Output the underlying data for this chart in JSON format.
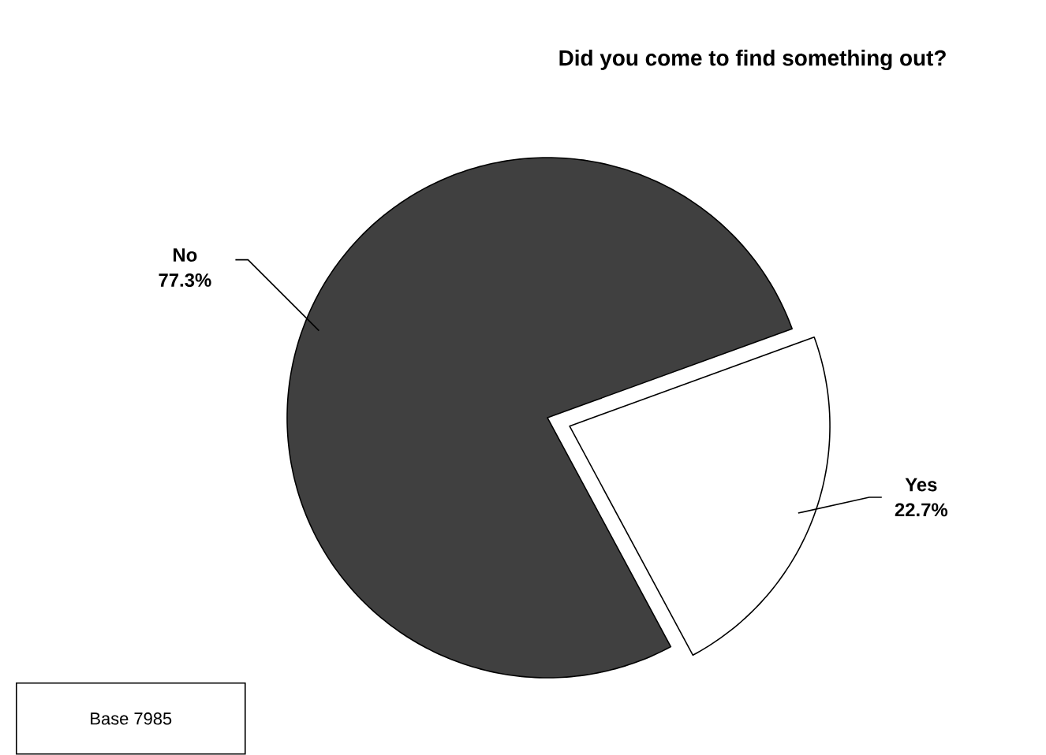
{
  "chart_data": {
    "type": "pie",
    "title": "Did you come to find something out?",
    "categories": [
      "No",
      "Yes"
    ],
    "values": [
      77.3,
      22.7
    ],
    "colors": [
      "#404040",
      "#ffffff"
    ],
    "value_labels": [
      "77.3%",
      "22.7%"
    ],
    "annotations": [
      "Base 7985"
    ]
  }
}
